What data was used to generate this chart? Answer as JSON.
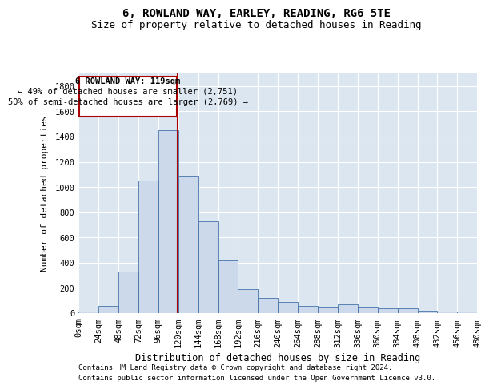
{
  "title1": "6, ROWLAND WAY, EARLEY, READING, RG6 5TE",
  "title2": "Size of property relative to detached houses in Reading",
  "xlabel": "Distribution of detached houses by size in Reading",
  "ylabel": "Number of detached properties",
  "footer1": "Contains HM Land Registry data © Crown copyright and database right 2024.",
  "footer2": "Contains public sector information licensed under the Open Government Licence v3.0.",
  "annotation_line1": "6 ROWLAND WAY: 119sqm",
  "annotation_line2": "← 49% of detached houses are smaller (2,751)",
  "annotation_line3": "50% of semi-detached houses are larger (2,769) →",
  "property_sqm": 119,
  "bin_edges": [
    0,
    24,
    48,
    72,
    96,
    120,
    144,
    168,
    192,
    216,
    240,
    264,
    288,
    312,
    336,
    360,
    384,
    408,
    432,
    456,
    480
  ],
  "bar_heights": [
    10,
    55,
    330,
    1050,
    1450,
    1090,
    730,
    420,
    190,
    120,
    90,
    60,
    50,
    70,
    50,
    40,
    35,
    20,
    15,
    10
  ],
  "bar_color": "#ccd9ea",
  "bar_edge_color": "#4472a8",
  "marker_color": "#aa0000",
  "ylim": [
    0,
    1900
  ],
  "yticks": [
    0,
    200,
    400,
    600,
    800,
    1000,
    1200,
    1400,
    1600,
    1800
  ],
  "plot_bg_color": "#dce6f1",
  "grid_color": "#ffffff",
  "title1_fontsize": 10,
  "title2_fontsize": 9,
  "xlabel_fontsize": 8.5,
  "ylabel_fontsize": 8,
  "tick_fontsize": 7.5,
  "footer_fontsize": 6.5,
  "ann_fontsize": 7.5
}
